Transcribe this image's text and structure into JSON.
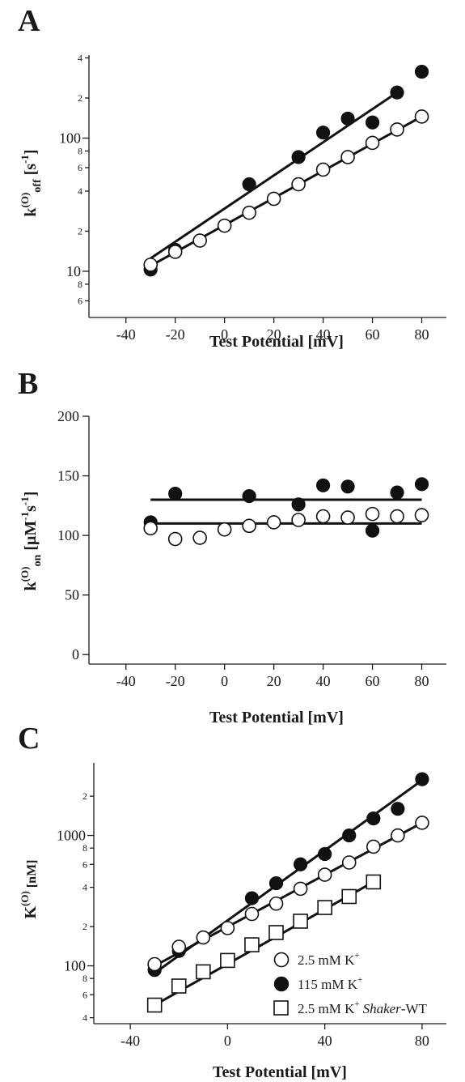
{
  "chart_data": [
    {
      "panel": "A",
      "type": "scatter",
      "yscale": "log",
      "xlabel": "Test Potential [mV]",
      "ylabel": {
        "main": "k",
        "sup": "(O)",
        "sub": "off",
        "unit": " [s",
        "unit_sup": "-1",
        "unit_end": "]"
      },
      "xlim": [
        -55,
        90
      ],
      "ylim": [
        4.5,
        420
      ],
      "x_ticks": [
        "-40",
        "-20",
        "0",
        "20",
        "40",
        "60",
        "80"
      ],
      "y_major_ticks": [
        {
          "value": 10,
          "label": "10"
        },
        {
          "value": 100,
          "label": "100"
        }
      ],
      "y_minor_ticks": [
        {
          "value": 6,
          "label": "6"
        },
        {
          "value": 8,
          "label": "8"
        },
        {
          "value": 20,
          "label": "2"
        },
        {
          "value": 40,
          "label": "4"
        },
        {
          "value": 60,
          "label": "6"
        },
        {
          "value": 80,
          "label": "8"
        },
        {
          "value": 200,
          "label": "2"
        },
        {
          "value": 400,
          "label": "4"
        }
      ],
      "series": [
        {
          "marker": "filled-circle",
          "x": [
            -30,
            -20,
            10,
            30,
            40,
            50,
            60,
            70,
            80
          ],
          "y": [
            10.3,
            14.5,
            45,
            72,
            110,
            140,
            131,
            220,
            315
          ],
          "fit": [
            [
              -30,
              12.5
            ],
            [
              70,
              220
            ]
          ]
        },
        {
          "marker": "open-circle",
          "x": [
            -30,
            -20,
            -10,
            0,
            10,
            20,
            30,
            40,
            50,
            60,
            70,
            80
          ],
          "y": [
            11.2,
            14,
            17,
            22,
            27.5,
            35,
            45,
            58,
            72,
            92,
            116,
            145
          ],
          "fit": [
            [
              -30,
              11
            ],
            [
              80,
              145
            ]
          ]
        }
      ]
    },
    {
      "panel": "B",
      "type": "scatter",
      "yscale": "linear",
      "xlabel": "Test Potential [mV]",
      "ylabel": {
        "main": "k",
        "sup": "(O)",
        "sub": "on",
        "unit": " [µM",
        "unit_sup": "-1",
        "unit_mid": "s",
        "unit_sup2": "-1",
        "unit_end": "]"
      },
      "xlim": [
        -55,
        90
      ],
      "ylim": [
        -8,
        200
      ],
      "x_ticks": [
        "-40",
        "-20",
        "0",
        "20",
        "40",
        "60",
        "80"
      ],
      "y_ticks": [
        "0",
        "50",
        "100",
        "150",
        "200"
      ],
      "series": [
        {
          "marker": "filled-circle",
          "x": [
            -30,
            -20,
            10,
            30,
            40,
            50,
            60,
            70,
            80
          ],
          "y": [
            111,
            135,
            133,
            126,
            142,
            141,
            104,
            136,
            143
          ],
          "fit": [
            [
              -30,
              130
            ],
            [
              80,
              130
            ]
          ]
        },
        {
          "marker": "open-circle",
          "x": [
            -30,
            -20,
            -10,
            0,
            10,
            20,
            30,
            40,
            50,
            60,
            70,
            80
          ],
          "y": [
            106,
            97,
            98,
            105,
            108,
            111,
            113,
            116,
            115,
            118,
            116,
            117
          ],
          "fit": [
            [
              -30,
              110
            ],
            [
              80,
              110
            ]
          ]
        }
      ]
    },
    {
      "panel": "C",
      "type": "scatter",
      "yscale": "log",
      "xlabel": "Test Potential [mV]",
      "ylabel": {
        "main": "K",
        "sup": "(O)",
        "unit": " [nM]"
      },
      "xlim": [
        -55,
        90
      ],
      "ylim": [
        36,
        3600
      ],
      "x_ticks": [
        "-40",
        "0",
        "40",
        "80"
      ],
      "y_major_ticks": [
        {
          "value": 100,
          "label": "100"
        },
        {
          "value": 1000,
          "label": "1000"
        }
      ],
      "y_minor_ticks": [
        {
          "value": 40,
          "label": "4"
        },
        {
          "value": 60,
          "label": "6"
        },
        {
          "value": 80,
          "label": "8"
        },
        {
          "value": 200,
          "label": "2"
        },
        {
          "value": 400,
          "label": "4"
        },
        {
          "value": 600,
          "label": "6"
        },
        {
          "value": 800,
          "label": "8"
        },
        {
          "value": 2000,
          "label": "2"
        }
      ],
      "series": [
        {
          "name": "2.5 mM K+",
          "marker": "open-circle",
          "x": [
            -30,
            -20,
            -10,
            0,
            10,
            20,
            30,
            40,
            50,
            60,
            70,
            80
          ],
          "y": [
            103,
            140,
            165,
            195,
            250,
            300,
            390,
            500,
            620,
            820,
            1000,
            1250
          ],
          "fit": [
            [
              -30,
              100
            ],
            [
              80,
              1250
            ]
          ]
        },
        {
          "name": "115 mM K+",
          "marker": "filled-circle",
          "x": [
            -30,
            -20,
            10,
            20,
            30,
            40,
            50,
            60,
            70,
            80
          ],
          "y": [
            93,
            130,
            330,
            430,
            600,
            720,
            1000,
            1350,
            1600,
            2700
          ],
          "fit": [
            [
              -30,
              88
            ],
            [
              80,
              2650
            ]
          ]
        },
        {
          "name": "2.5 mM K+ Shaker-WT",
          "marker": "open-square",
          "x": [
            -30,
            -20,
            -10,
            0,
            10,
            20,
            30,
            40,
            50,
            60
          ],
          "y": [
            50,
            70,
            90,
            110,
            145,
            180,
            220,
            280,
            340,
            440
          ],
          "fit": [
            [
              -30,
              50
            ],
            [
              60,
              440
            ]
          ]
        }
      ],
      "legend": [
        {
          "marker": "open-circle",
          "text": "2.5 mM K",
          "sup": "+",
          "extra": ""
        },
        {
          "marker": "filled-circle",
          "text": "115 mM K",
          "sup": "+",
          "extra": ""
        },
        {
          "marker": "open-square",
          "text": "2.5 mM K",
          "sup": "+",
          "extra": "Shaker",
          "extra_suffix": "-WT"
        }
      ]
    }
  ]
}
